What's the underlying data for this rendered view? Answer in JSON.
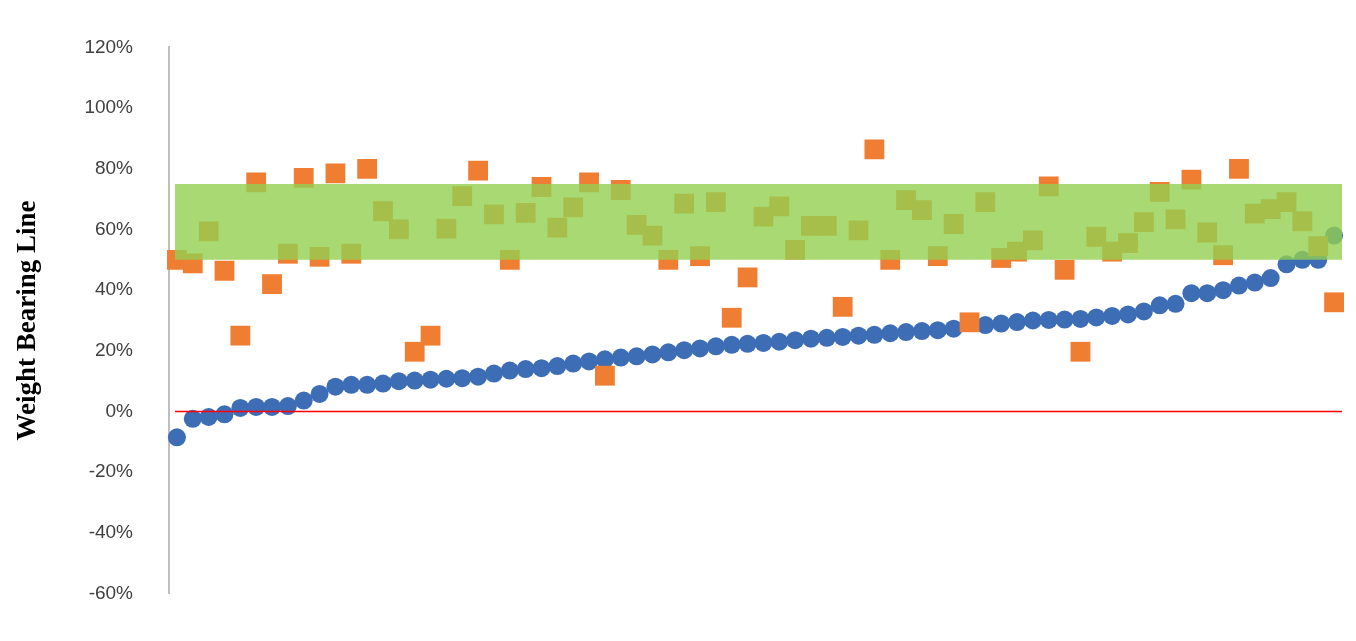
{
  "chart_data": {
    "type": "scatter",
    "ylabel": "Weight Bearing Line",
    "categories": [
      null,
      null,
      null,
      null,
      null,
      null,
      null,
      null,
      null,
      null,
      null,
      null,
      null,
      null,
      null,
      null,
      null,
      null,
      null,
      null,
      null,
      null,
      null,
      null,
      null,
      null,
      null,
      null,
      null,
      null,
      null,
      null,
      null,
      null,
      null,
      null,
      null,
      null,
      null,
      null,
      null,
      null,
      null,
      null,
      null,
      null,
      null,
      null,
      null,
      null,
      null,
      null,
      null,
      null,
      null,
      null,
      null,
      null,
      null,
      null,
      null,
      null,
      null,
      null,
      null,
      null,
      null,
      null,
      null,
      null,
      null,
      null,
      null,
      null
    ],
    "series": [
      {
        "type": "scatter",
        "marker": "circle",
        "color": "#3d6db5",
        "values": [
          -8.5,
          -2.4,
          -1.8,
          -0.9,
          1.2,
          1.5,
          1.5,
          1.8,
          3.6,
          5.8,
          8.2,
          8.8,
          8.8,
          9.2,
          10,
          10.2,
          10.5,
          10.8,
          11,
          11.5,
          12.5,
          13.5,
          14,
          14.3,
          15,
          15.8,
          16.5,
          17.2,
          17.8,
          18.2,
          18.8,
          19.5,
          20.2,
          20.8,
          21.5,
          22,
          22.3,
          22.6,
          23,
          23.5,
          24,
          24.3,
          24.6,
          25,
          25.3,
          25.8,
          26.2,
          26.5,
          26.8,
          27.3,
          null,
          28.5,
          29,
          29.5,
          30,
          30.2,
          30.3,
          30.5,
          31,
          31.5,
          32,
          33,
          35,
          35.5,
          39,
          39,
          40,
          41.5,
          42.5,
          44,
          48.5,
          50,
          50,
          58
        ]
      },
      {
        "type": "scatter",
        "marker": "square",
        "color": "#ef7d32",
        "values": [
          50,
          48.8,
          59.4,
          46.4,
          25,
          75.5,
          42,
          52,
          77,
          51,
          78.5,
          52,
          80,
          66,
          60,
          19.7,
          25,
          60.3,
          71,
          79.4,
          65,
          50,
          65.5,
          74,
          60.6,
          67.3,
          75.5,
          11.8,
          73,
          61.5,
          58,
          50,
          68.5,
          51.2,
          69,
          30.9,
          44.2,
          64.2,
          67.6,
          53.3,
          61.2,
          61.2,
          34.5,
          59.7,
          86.4,
          50,
          69.7,
          66.4,
          51.2,
          61.8,
          29.4,
          69,
          50.6,
          52.7,
          56.4,
          74.2,
          46.7,
          19.7,
          57.6,
          52.7,
          55.5,
          62.4,
          72.4,
          63.3,
          76.4,
          59,
          51.5,
          80,
          65.2,
          66.7,
          69,
          62.7,
          54.5,
          36
        ]
      }
    ],
    "ylim": [
      -60,
      120
    ],
    "yticks": [
      {
        "value": -60,
        "label": "-60%"
      },
      {
        "value": -40,
        "label": "-40%"
      },
      {
        "value": -20,
        "label": "-20%"
      },
      {
        "value": 0,
        "label": "0%"
      },
      {
        "value": 20,
        "label": "20%"
      },
      {
        "value": 40,
        "label": "40%"
      },
      {
        "value": 60,
        "label": "60%"
      },
      {
        "value": 80,
        "label": "80%"
      },
      {
        "value": 100,
        "label": "100%"
      },
      {
        "value": 120,
        "label": "120%"
      }
    ],
    "tick_labels": "y",
    "grid": false,
    "legend": false,
    "bands": [
      {
        "axis": "y",
        "from": 50,
        "to": 75,
        "color": "#92d050"
      }
    ],
    "ref_lines": [
      {
        "axis": "y",
        "value": 0,
        "color": "#ff0000"
      }
    ]
  }
}
